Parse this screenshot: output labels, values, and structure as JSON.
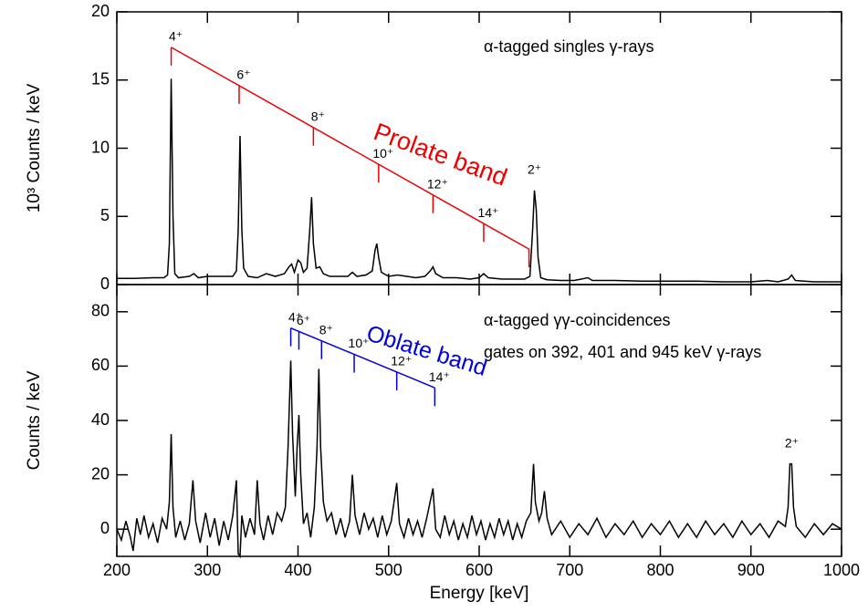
{
  "chart_data": [
    {
      "type": "line",
      "ylabel": "10³ Counts / keV",
      "xlim": [
        200,
        1000
      ],
      "ylim": [
        0,
        20
      ],
      "yticks": [
        0,
        5,
        10,
        15,
        20
      ],
      "annotations": [
        "α-tagged singles γ-rays"
      ],
      "band": {
        "label": "Prolate band",
        "color": "#ee0000",
        "energies": [
          260,
          335,
          417,
          489,
          549,
          605,
          655
        ],
        "labels": [
          "4⁺",
          "6⁺",
          "8⁺",
          "10⁺",
          "12⁺",
          "14⁺",
          null
        ]
      },
      "peak_labels": [
        {
          "energy": 661,
          "label": "2⁺"
        }
      ],
      "x": [
        200,
        220,
        240,
        252,
        256,
        258,
        260,
        262,
        264,
        268,
        280,
        285,
        290,
        300,
        310,
        320,
        328,
        332,
        334,
        336,
        338,
        340,
        345,
        355,
        365,
        375,
        385,
        390,
        393,
        396,
        400,
        403,
        406,
        410,
        413,
        415,
        417,
        420,
        424,
        428,
        435,
        445,
        455,
        460,
        465,
        475,
        482,
        485,
        487,
        489,
        492,
        500,
        510,
        520,
        530,
        540,
        546,
        549,
        552,
        560,
        575,
        590,
        600,
        605,
        610,
        625,
        640,
        650,
        656,
        659,
        661,
        663,
        665,
        668,
        675,
        690,
        705,
        720,
        725,
        750,
        780,
        810,
        840,
        870,
        900,
        918,
        930,
        941,
        945,
        949,
        970,
        1000
      ],
      "series": [
        {
          "color": "#000000",
          "values": [
            0.45,
            0.45,
            0.5,
            0.5,
            0.7,
            3.0,
            15.1,
            5.0,
            0.8,
            0.5,
            0.6,
            0.8,
            0.5,
            0.6,
            0.6,
            0.6,
            0.6,
            1.0,
            4.0,
            10.9,
            4.0,
            1.2,
            0.6,
            0.5,
            0.8,
            0.6,
            0.8,
            1.3,
            1.5,
            0.9,
            1.8,
            1.6,
            0.9,
            1.2,
            4.0,
            6.4,
            3.0,
            1.2,
            1.3,
            0.8,
            0.6,
            0.6,
            0.6,
            0.9,
            0.6,
            0.7,
            1.0,
            2.5,
            3.0,
            2.0,
            0.9,
            0.6,
            0.7,
            0.6,
            0.5,
            0.6,
            1.0,
            1.3,
            0.8,
            0.5,
            0.5,
            0.4,
            0.5,
            0.8,
            0.5,
            0.4,
            0.4,
            0.4,
            0.6,
            4.0,
            6.9,
            5.5,
            2.0,
            0.5,
            0.35,
            0.3,
            0.3,
            0.5,
            0.3,
            0.3,
            0.25,
            0.25,
            0.25,
            0.2,
            0.2,
            0.3,
            0.2,
            0.4,
            0.7,
            0.3,
            0.2,
            0.2
          ]
        }
      ]
    },
    {
      "type": "line",
      "xlabel": "Energy [keV]",
      "ylabel": "Counts / keV",
      "xlim": [
        200,
        1000
      ],
      "ylim": [
        -10,
        90
      ],
      "xticks": [
        200,
        300,
        400,
        500,
        600,
        700,
        800,
        900,
        1000
      ],
      "yticks": [
        0,
        20,
        40,
        60,
        80
      ],
      "annotations": [
        "α-tagged γγ-coincidences",
        "gates on 392, 401 and 945 keV γ-rays"
      ],
      "band": {
        "label": "Oblate band",
        "color": "#0000dd",
        "energies": [
          392,
          401,
          426,
          462,
          509,
          551
        ],
        "labels": [
          "4⁺",
          "6⁺",
          "8⁺",
          "10⁺",
          "12⁺",
          "14⁺"
        ]
      },
      "peak_labels": [
        {
          "energy": 945,
          "label": "2⁺"
        }
      ],
      "x": [
        200,
        205,
        210,
        215,
        218,
        222,
        226,
        230,
        235,
        240,
        245,
        250,
        255,
        258,
        260,
        262,
        265,
        270,
        275,
        280,
        284,
        287,
        292,
        298,
        303,
        308,
        313,
        318,
        323,
        328,
        332,
        334,
        336,
        338,
        342,
        347,
        352,
        355,
        358,
        362,
        367,
        372,
        377,
        382,
        386,
        389,
        392,
        394,
        397,
        399,
        401,
        403,
        406,
        410,
        414,
        418,
        421,
        423,
        425,
        428,
        432,
        437,
        442,
        447,
        452,
        457,
        460,
        463,
        468,
        473,
        478,
        483,
        488,
        493,
        498,
        503,
        509,
        512,
        517,
        522,
        527,
        532,
        537,
        542,
        549,
        552,
        557,
        562,
        567,
        572,
        577,
        582,
        587,
        592,
        597,
        602,
        607,
        612,
        617,
        622,
        627,
        632,
        637,
        642,
        647,
        652,
        657,
        660,
        662,
        666,
        669,
        672,
        675,
        680,
        690,
        700,
        710,
        720,
        730,
        740,
        750,
        760,
        770,
        780,
        790,
        800,
        810,
        820,
        830,
        840,
        850,
        860,
        870,
        880,
        890,
        900,
        910,
        920,
        930,
        938,
        941,
        943,
        945,
        947,
        950,
        960,
        970,
        980,
        990,
        1000
      ],
      "series": [
        {
          "color": "#000000",
          "values": [
            0,
            -4,
            3,
            -3,
            -8,
            4,
            -2,
            5,
            -3,
            2,
            -5,
            4,
            0,
            10,
            35,
            8,
            -3,
            3,
            -4,
            2,
            18,
            3,
            -5,
            6,
            -3,
            4,
            -6,
            3,
            -4,
            5,
            18,
            -9,
            -10,
            5,
            -3,
            4,
            -2,
            18,
            2,
            -4,
            5,
            -2,
            6,
            3,
            8,
            30,
            62,
            35,
            12,
            30,
            42,
            20,
            2,
            6,
            -3,
            8,
            30,
            59,
            30,
            10,
            3,
            6,
            -2,
            4,
            -3,
            3,
            20,
            5,
            -2,
            6,
            0,
            4,
            -3,
            5,
            -2,
            3,
            17,
            2,
            -3,
            4,
            -2,
            3,
            -3,
            4,
            15,
            0,
            -3,
            5,
            -2,
            3,
            -4,
            2,
            -3,
            5,
            -2,
            3,
            -4,
            2,
            -3,
            4,
            -2,
            3,
            -4,
            2,
            -3,
            3,
            6,
            24,
            10,
            3,
            6,
            14,
            4,
            -2,
            3,
            -3,
            2,
            -2,
            4,
            -3,
            2,
            -2,
            3,
            -3,
            2,
            -2,
            3,
            -3,
            2,
            -3,
            3,
            -2,
            2,
            -3,
            3,
            -2,
            2,
            -3,
            3,
            1,
            8,
            24,
            24,
            8,
            1,
            -3,
            2,
            -2,
            2,
            0
          ]
        }
      ]
    }
  ]
}
